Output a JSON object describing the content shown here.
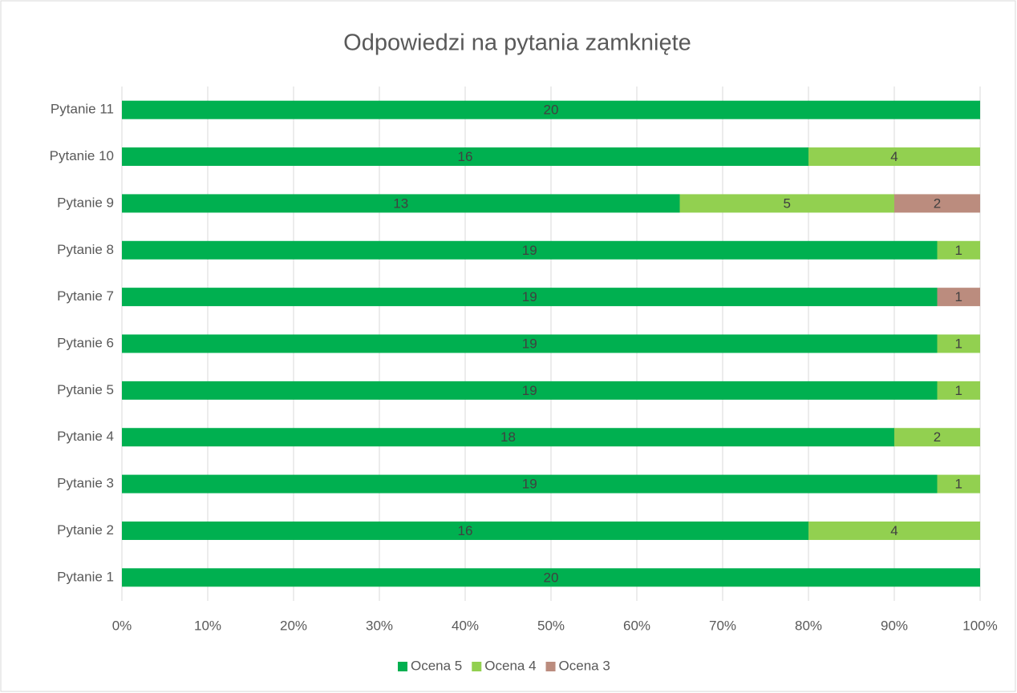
{
  "chart_data": {
    "type": "stacked-bar-percent",
    "title": "Odpowiedzi na pytania zamknięte",
    "categories": [
      "Pytanie 1",
      "Pytanie 2",
      "Pytanie 3",
      "Pytanie 4",
      "Pytanie 5",
      "Pytanie 6",
      "Pytanie 7",
      "Pytanie 8",
      "Pytanie 9",
      "Pytanie 10",
      "Pytanie 11"
    ],
    "series": [
      {
        "name": "Ocena 5",
        "color": "#00b050",
        "values": [
          20,
          16,
          19,
          18,
          19,
          19,
          19,
          19,
          13,
          16,
          20
        ]
      },
      {
        "name": "Ocena 4",
        "color": "#92d050",
        "values": [
          null,
          4,
          1,
          2,
          1,
          1,
          null,
          1,
          5,
          4,
          null
        ]
      },
      {
        "name": "Ocena 3",
        "color": "#bb8c7e",
        "values": [
          null,
          null,
          null,
          null,
          null,
          null,
          1,
          null,
          2,
          null,
          null
        ]
      }
    ],
    "xlim": [
      0,
      100
    ],
    "xticks": [
      {
        "value": 0,
        "label": "0%"
      },
      {
        "value": 10,
        "label": "10%"
      },
      {
        "value": 20,
        "label": "20%"
      },
      {
        "value": 30,
        "label": "30%"
      },
      {
        "value": 40,
        "label": "40%"
      },
      {
        "value": 50,
        "label": "50%"
      },
      {
        "value": 60,
        "label": "60%"
      },
      {
        "value": 70,
        "label": "70%"
      },
      {
        "value": 80,
        "label": "80%"
      },
      {
        "value": 90,
        "label": "90%"
      },
      {
        "value": 100,
        "label": "100%"
      }
    ],
    "grid": true,
    "legend": "bottom"
  }
}
